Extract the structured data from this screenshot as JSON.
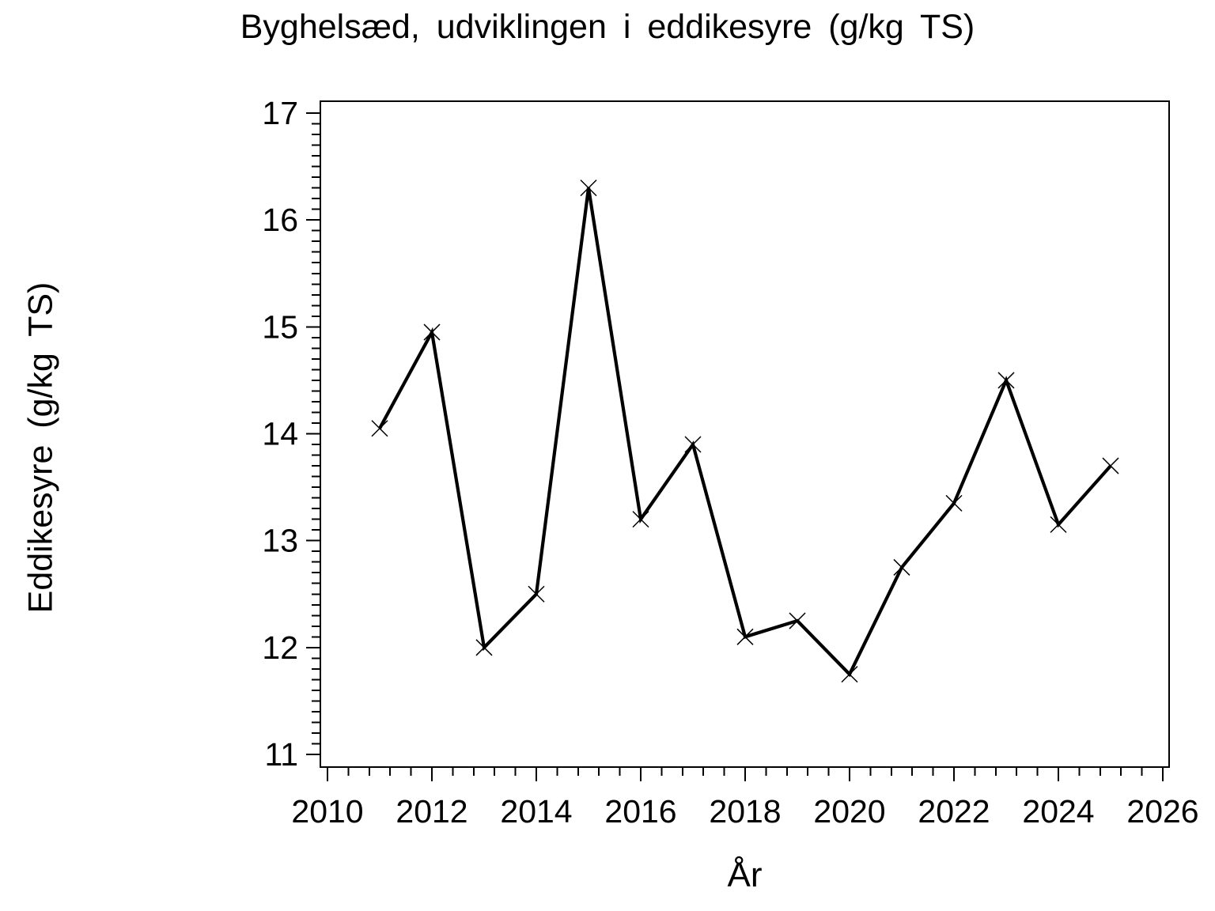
{
  "chart_data": {
    "type": "line",
    "title": "Byghelsæd, udviklingen i eddikesyre (g/kg TS)",
    "xlabel": "År",
    "ylabel": "Eddikesyre (g/kg TS)",
    "x": [
      2011,
      2012,
      2013,
      2014,
      2015,
      2016,
      2017,
      2018,
      2019,
      2020,
      2021,
      2022,
      2023,
      2024,
      2025
    ],
    "series": [
      {
        "name": "Eddikesyre g/kg TS",
        "values": [
          14.05,
          14.95,
          12.0,
          12.5,
          16.3,
          13.2,
          13.9,
          12.1,
          12.25,
          11.75,
          12.75,
          13.35,
          14.5,
          13.15,
          13.7
        ]
      }
    ],
    "xlim": [
      2010,
      2026
    ],
    "ylim": [
      11,
      17
    ],
    "x_major_ticks": [
      2010,
      2012,
      2014,
      2016,
      2018,
      2020,
      2022,
      2024,
      2026
    ],
    "x_minor_per_interval": 4,
    "y_major_ticks": [
      11,
      12,
      13,
      14,
      15,
      16,
      17
    ],
    "y_minor_per_interval": 9,
    "grid": false,
    "legend": false,
    "marker": "x",
    "line_color": "#000000",
    "background_color": "#ffffff"
  }
}
